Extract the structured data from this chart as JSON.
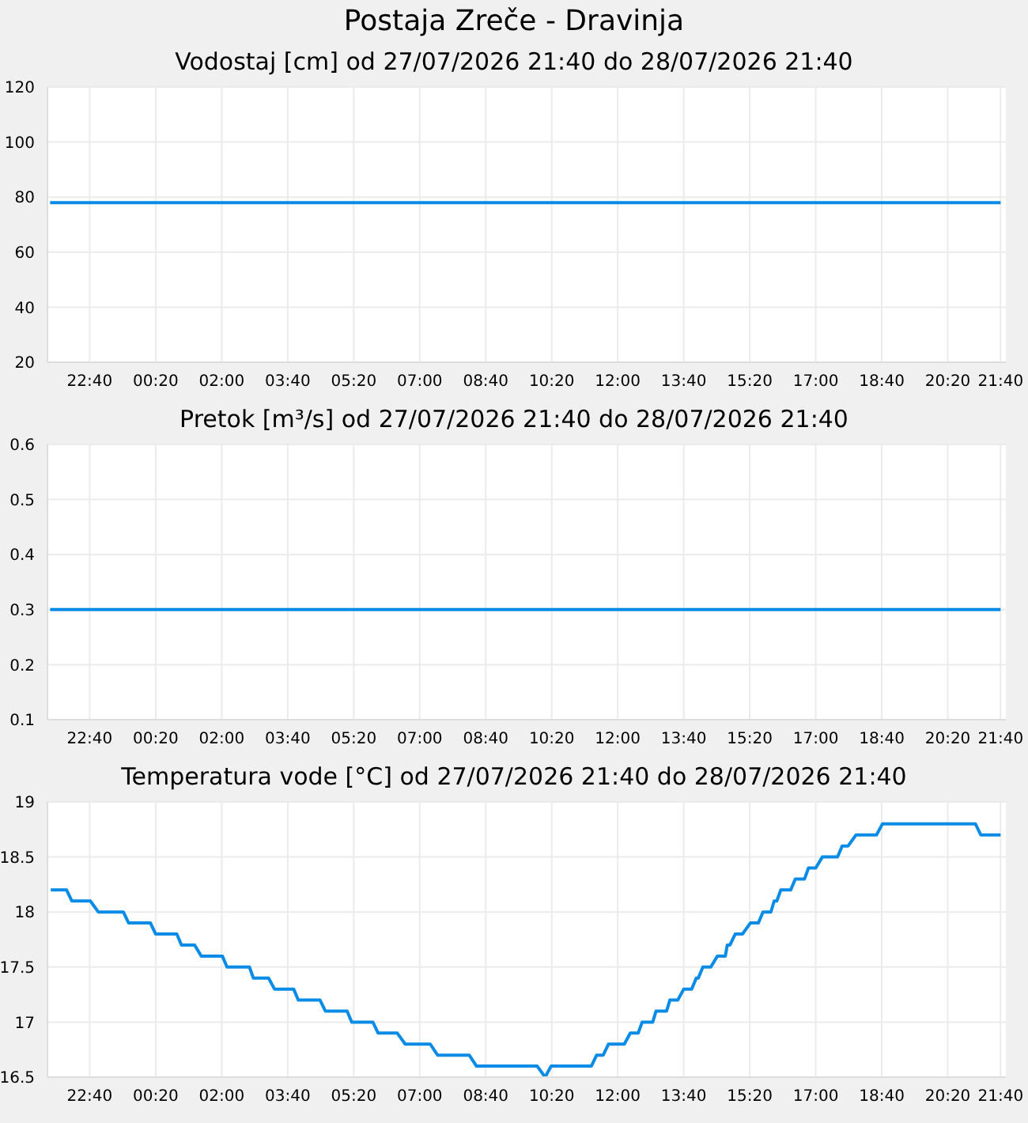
{
  "chart_data": [
    {
      "type": "line",
      "title": "Postaja Zreče - Dravinja",
      "subtitle": "Vodostaj [cm] od 27/07/2026 21:40 do 28/07/2026 21:40",
      "x": [
        "2026-07-27T21:40",
        "2026-07-28T21:40"
      ],
      "series": [
        {
          "color": "#0a8ce6",
          "values": [
            78,
            78
          ]
        }
      ],
      "xlim": [
        "2026-07-27T21:36",
        "2026-07-28T21:48"
      ],
      "xticks": [
        {
          "value": "2026-07-27T22:40",
          "label": "22:40"
        },
        {
          "value": "2026-07-28T00:20",
          "label": "00:20"
        },
        {
          "value": "2026-07-28T02:00",
          "label": "02:00"
        },
        {
          "value": "2026-07-28T03:40",
          "label": "03:40"
        },
        {
          "value": "2026-07-28T05:20",
          "label": "05:20"
        },
        {
          "value": "2026-07-28T07:00",
          "label": "07:00"
        },
        {
          "value": "2026-07-28T08:40",
          "label": "08:40"
        },
        {
          "value": "2026-07-28T10:20",
          "label": "10:20"
        },
        {
          "value": "2026-07-28T12:00",
          "label": "12:00"
        },
        {
          "value": "2026-07-28T13:40",
          "label": "13:40"
        },
        {
          "value": "2026-07-28T15:20",
          "label": "15:20"
        },
        {
          "value": "2026-07-28T17:00",
          "label": "17:00"
        },
        {
          "value": "2026-07-28T18:40",
          "label": "18:40"
        },
        {
          "value": "2026-07-28T20:20",
          "label": "20:20"
        },
        {
          "value": "2026-07-28T21:40",
          "label": "21:40"
        }
      ],
      "ylim": [
        20,
        120
      ],
      "yticks": [
        20,
        40,
        60,
        80,
        100,
        120
      ],
      "grid": true,
      "marker": "none",
      "legend": false
    },
    {
      "type": "line",
      "title": "Pretok [m³/s] od 27/07/2026 21:40 do 28/07/2026 21:40",
      "x": [
        "2026-07-27T21:40",
        "2026-07-28T21:40"
      ],
      "series": [
        {
          "color": "#0a8ce6",
          "values": [
            0.3,
            0.3
          ]
        }
      ],
      "xlim": [
        "2026-07-27T21:36",
        "2026-07-28T21:48"
      ],
      "xticks": [
        {
          "value": "2026-07-27T22:40",
          "label": "22:40"
        },
        {
          "value": "2026-07-28T00:20",
          "label": "00:20"
        },
        {
          "value": "2026-07-28T02:00",
          "label": "02:00"
        },
        {
          "value": "2026-07-28T03:40",
          "label": "03:40"
        },
        {
          "value": "2026-07-28T05:20",
          "label": "05:20"
        },
        {
          "value": "2026-07-28T07:00",
          "label": "07:00"
        },
        {
          "value": "2026-07-28T08:40",
          "label": "08:40"
        },
        {
          "value": "2026-07-28T10:20",
          "label": "10:20"
        },
        {
          "value": "2026-07-28T12:00",
          "label": "12:00"
        },
        {
          "value": "2026-07-28T13:40",
          "label": "13:40"
        },
        {
          "value": "2026-07-28T15:20",
          "label": "15:20"
        },
        {
          "value": "2026-07-28T17:00",
          "label": "17:00"
        },
        {
          "value": "2026-07-28T18:40",
          "label": "18:40"
        },
        {
          "value": "2026-07-28T20:20",
          "label": "20:20"
        },
        {
          "value": "2026-07-28T21:40",
          "label": "21:40"
        }
      ],
      "ylim": [
        0.1,
        0.6
      ],
      "yticks": [
        0.1,
        0.2,
        0.3,
        0.4,
        0.5,
        0.6
      ],
      "grid": true,
      "marker": "none",
      "legend": false
    },
    {
      "type": "line",
      "title": "Temperatura vode [°C] od 27/07/2026 21:40 do 28/07/2026 21:40",
      "x": [
        "2026-07-27T21:41",
        "2026-07-27T22:05",
        "2026-07-27T22:13",
        "2026-07-27T22:41",
        "2026-07-27T22:53",
        "2026-07-27T23:31",
        "2026-07-27T23:39",
        "2026-07-28T00:12",
        "2026-07-28T00:20",
        "2026-07-28T00:52",
        "2026-07-28T00:59",
        "2026-07-28T01:19",
        "2026-07-28T01:29",
        "2026-07-28T02:01",
        "2026-07-28T02:08",
        "2026-07-28T02:42",
        "2026-07-28T02:48",
        "2026-07-28T03:11",
        "2026-07-28T03:20",
        "2026-07-28T03:49",
        "2026-07-28T03:56",
        "2026-07-28T04:29",
        "2026-07-28T04:37",
        "2026-07-28T05:10",
        "2026-07-28T05:17",
        "2026-07-28T05:49",
        "2026-07-28T05:57",
        "2026-07-28T06:26",
        "2026-07-28T06:38",
        "2026-07-28T07:16",
        "2026-07-28T07:27",
        "2026-07-28T08:15",
        "2026-07-28T08:26",
        "2026-07-28T09:58",
        "2026-07-28T10:10",
        "2026-07-28T10:19",
        "2026-07-28T11:20",
        "2026-07-28T11:28",
        "2026-07-28T11:38",
        "2026-07-28T11:46",
        "2026-07-28T12:10",
        "2026-07-28T12:19",
        "2026-07-28T12:31",
        "2026-07-28T12:37",
        "2026-07-28T12:53",
        "2026-07-28T12:58",
        "2026-07-28T13:14",
        "2026-07-28T13:19",
        "2026-07-28T13:31",
        "2026-07-28T13:40",
        "2026-07-28T13:52",
        "2026-07-28T13:59",
        "2026-07-28T14:02",
        "2026-07-28T14:09",
        "2026-07-28T14:21",
        "2026-07-28T14:31",
        "2026-07-28T14:43",
        "2026-07-28T14:46",
        "2026-07-28T14:50",
        "2026-07-28T14:58",
        "2026-07-28T15:09",
        "2026-07-28T15:21",
        "2026-07-28T15:33",
        "2026-07-28T15:40",
        "2026-07-28T15:52",
        "2026-07-28T15:57",
        "2026-07-28T16:01",
        "2026-07-28T16:07",
        "2026-07-28T16:22",
        "2026-07-28T16:29",
        "2026-07-28T16:43",
        "2026-07-28T16:49",
        "2026-07-28T17:00",
        "2026-07-28T17:10",
        "2026-07-28T17:33",
        "2026-07-28T17:40",
        "2026-07-28T17:49",
        "2026-07-28T18:01",
        "2026-07-28T18:32",
        "2026-07-28T18:41",
        "2026-07-28T21:02",
        "2026-07-28T21:10",
        "2026-07-28T21:40"
      ],
      "series": [
        {
          "color": "#0a8ce6",
          "values": [
            18.2,
            18.2,
            18.1,
            18.1,
            18.0,
            18.0,
            17.9,
            17.9,
            17.8,
            17.8,
            17.7,
            17.7,
            17.6,
            17.6,
            17.5,
            17.5,
            17.4,
            17.4,
            17.3,
            17.3,
            17.2,
            17.2,
            17.1,
            17.1,
            17.0,
            17.0,
            16.9,
            16.9,
            16.8,
            16.8,
            16.7,
            16.7,
            16.6,
            16.6,
            16.5,
            16.6,
            16.6,
            16.7,
            16.7,
            16.8,
            16.8,
            16.9,
            16.9,
            17.0,
            17.0,
            17.1,
            17.1,
            17.2,
            17.2,
            17.3,
            17.3,
            17.4,
            17.4,
            17.5,
            17.5,
            17.6,
            17.6,
            17.7,
            17.7,
            17.8,
            17.8,
            17.9,
            17.9,
            18.0,
            18.0,
            18.1,
            18.1,
            18.2,
            18.2,
            18.3,
            18.3,
            18.4,
            18.4,
            18.5,
            18.5,
            18.6,
            18.6,
            18.7,
            18.7,
            18.8,
            18.8,
            18.7,
            18.7
          ]
        }
      ],
      "xlim": [
        "2026-07-27T21:36",
        "2026-07-28T21:48"
      ],
      "xticks": [
        {
          "value": "2026-07-27T22:40",
          "label": "22:40"
        },
        {
          "value": "2026-07-28T00:20",
          "label": "00:20"
        },
        {
          "value": "2026-07-28T02:00",
          "label": "02:00"
        },
        {
          "value": "2026-07-28T03:40",
          "label": "03:40"
        },
        {
          "value": "2026-07-28T05:20",
          "label": "05:20"
        },
        {
          "value": "2026-07-28T07:00",
          "label": "07:00"
        },
        {
          "value": "2026-07-28T08:40",
          "label": "08:40"
        },
        {
          "value": "2026-07-28T10:20",
          "label": "10:20"
        },
        {
          "value": "2026-07-28T12:00",
          "label": "12:00"
        },
        {
          "value": "2026-07-28T13:40",
          "label": "13:40"
        },
        {
          "value": "2026-07-28T15:20",
          "label": "15:20"
        },
        {
          "value": "2026-07-28T17:00",
          "label": "17:00"
        },
        {
          "value": "2026-07-28T18:40",
          "label": "18:40"
        },
        {
          "value": "2026-07-28T20:20",
          "label": "20:20"
        },
        {
          "value": "2026-07-28T21:40",
          "label": "21:40"
        }
      ],
      "ylim": [
        16.5,
        19
      ],
      "yticks": [
        16.5,
        17,
        17.5,
        18,
        18.5,
        19
      ],
      "grid": true,
      "marker": "none",
      "legend": false
    }
  ]
}
